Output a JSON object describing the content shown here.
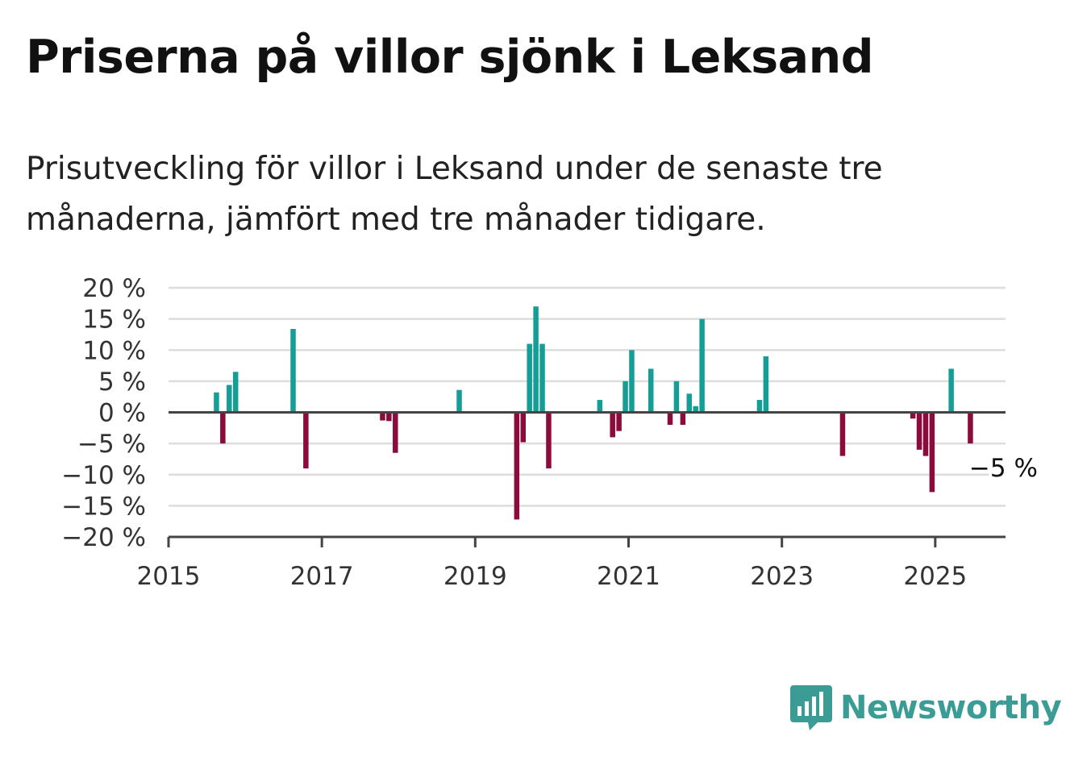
{
  "title": "Priserna på villor sjönk i Leksand",
  "subtitle": "Prisutveckling för villor i Leksand under de senaste tre månaderna, jämfört med tre månader tidigare.",
  "brand": {
    "name": "Newsworthy",
    "color": "#3a9c95",
    "icon": "bar-chart-logo-icon"
  },
  "colors": {
    "positive": "#149e96",
    "negative": "#8b0b3c",
    "grid": "#dddddd",
    "axis": "#444444"
  },
  "chart_data": {
    "type": "bar",
    "xlabel": "",
    "ylabel": "",
    "ylim": [
      -20,
      20
    ],
    "yticks": [
      20,
      15,
      10,
      5,
      0,
      -5,
      -10,
      -15,
      -20
    ],
    "ytick_labels": [
      "20 %",
      "15 %",
      "10 %",
      "5 %",
      "0 %",
      "−5 %",
      "−10 %",
      "−15 %",
      "−20 %"
    ],
    "xlim": [
      "2015-01",
      "2025-12"
    ],
    "xticks": [
      "2015-01",
      "2017-01",
      "2019-01",
      "2021-01",
      "2023-01",
      "2025-01"
    ],
    "xtick_labels": [
      "2015",
      "2017",
      "2019",
      "2021",
      "2023",
      "2025"
    ],
    "grid": true,
    "series": [
      {
        "points": [
          {
            "x": "2015-08",
            "y": 3.2
          },
          {
            "x": "2015-09",
            "y": -5.0
          },
          {
            "x": "2015-10",
            "y": 4.4
          },
          {
            "x": "2015-11",
            "y": 6.5
          },
          {
            "x": "2016-08",
            "y": 13.4
          },
          {
            "x": "2016-10",
            "y": -9.0
          },
          {
            "x": "2017-10",
            "y": -1.3
          },
          {
            "x": "2017-11",
            "y": -1.4
          },
          {
            "x": "2017-12",
            "y": -6.5
          },
          {
            "x": "2018-10",
            "y": 3.6
          },
          {
            "x": "2019-07",
            "y": -17.2
          },
          {
            "x": "2019-08",
            "y": -4.8
          },
          {
            "x": "2019-09",
            "y": 11.0
          },
          {
            "x": "2019-10",
            "y": 17.0
          },
          {
            "x": "2019-11",
            "y": 11.0
          },
          {
            "x": "2019-12",
            "y": -9.0
          },
          {
            "x": "2020-08",
            "y": 2.0
          },
          {
            "x": "2020-10",
            "y": -4.0
          },
          {
            "x": "2020-11",
            "y": -3.0
          },
          {
            "x": "2020-12",
            "y": 5.0
          },
          {
            "x": "2021-01",
            "y": 10.0
          },
          {
            "x": "2021-04",
            "y": 7.0
          },
          {
            "x": "2021-07",
            "y": -2.0
          },
          {
            "x": "2021-08",
            "y": 5.0
          },
          {
            "x": "2021-09",
            "y": -2.0
          },
          {
            "x": "2021-10",
            "y": 3.0
          },
          {
            "x": "2021-11",
            "y": 1.0
          },
          {
            "x": "2021-12",
            "y": 15.0
          },
          {
            "x": "2022-09",
            "y": 2.0
          },
          {
            "x": "2022-10",
            "y": 9.0
          },
          {
            "x": "2023-10",
            "y": -7.0
          },
          {
            "x": "2024-09",
            "y": -1.0
          },
          {
            "x": "2024-10",
            "y": -6.0
          },
          {
            "x": "2024-11",
            "y": -7.0
          },
          {
            "x": "2024-12",
            "y": -12.8
          },
          {
            "x": "2025-03",
            "y": 7.0
          },
          {
            "x": "2025-06",
            "y": -5.0
          }
        ]
      }
    ],
    "annotation": {
      "x": "2025-06",
      "text": "−5 %"
    }
  }
}
